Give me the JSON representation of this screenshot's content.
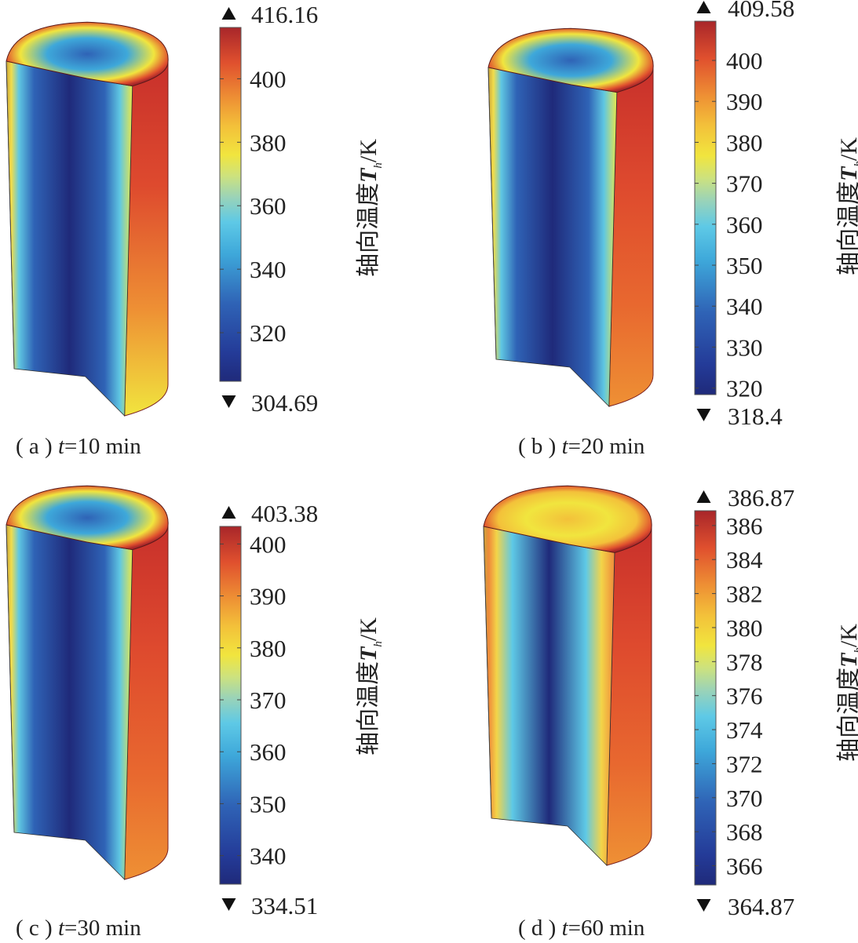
{
  "panels": [
    {
      "caption_prefix": "( a ) ",
      "caption_t": "t",
      "caption_suffix": "=10 min",
      "colorbar_label_prefix": "轴向温度",
      "colorbar_label_symbol": "T",
      "colorbar_label_sub": "h",
      "colorbar_label_unit": "/K",
      "max_label": "416.16",
      "min_label": "304.69"
    },
    {
      "caption_prefix": "( b ) ",
      "caption_t": "t",
      "caption_suffix": "=20 min",
      "colorbar_label_prefix": "轴向温度",
      "colorbar_label_symbol": "T",
      "colorbar_label_sub": "h",
      "colorbar_label_unit": "/K",
      "max_label": "409.58",
      "min_label": "318.4"
    },
    {
      "caption_prefix": "( c ) ",
      "caption_t": "t",
      "caption_suffix": "=30 min",
      "colorbar_label_prefix": "轴向温度",
      "colorbar_label_symbol": "T",
      "colorbar_label_sub": "h",
      "colorbar_label_unit": "/K",
      "max_label": "403.38",
      "min_label": "334.51"
    },
    {
      "caption_prefix": "( d ) ",
      "caption_t": "t",
      "caption_suffix": "=60 min",
      "colorbar_label_prefix": "轴向温度",
      "colorbar_label_symbol": "T",
      "colorbar_label_sub": "h",
      "colorbar_label_unit": "/K",
      "max_label": "386.87",
      "min_label": "364.87"
    }
  ],
  "chart_data": [
    {
      "type": "heatmap",
      "subplot": "(a)",
      "time_min": 10,
      "colorbar_label": "轴向温度T_h/K",
      "colormap": "rainbow (dark blue → cyan → yellow → red)",
      "range": [
        304.69,
        416.16
      ],
      "ticks": [
        320,
        340,
        360,
        380,
        400
      ],
      "max_marker": 416.16,
      "min_marker": 304.69
    },
    {
      "type": "heatmap",
      "subplot": "(b)",
      "time_min": 20,
      "colorbar_label": "轴向温度T_h/K",
      "colormap": "rainbow (dark blue → cyan → yellow → red)",
      "range": [
        318.4,
        409.58
      ],
      "ticks": [
        320,
        330,
        340,
        350,
        360,
        370,
        380,
        390,
        400
      ],
      "max_marker": 409.58,
      "min_marker": 318.4
    },
    {
      "type": "heatmap",
      "subplot": "(c)",
      "time_min": 30,
      "colorbar_label": "轴向温度T_h/K",
      "colormap": "rainbow (dark blue → cyan → yellow → red)",
      "range": [
        334.51,
        403.38
      ],
      "ticks": [
        340,
        350,
        360,
        370,
        380,
        390,
        400
      ],
      "max_marker": 403.38,
      "min_marker": 334.51
    },
    {
      "type": "heatmap",
      "subplot": "(d)",
      "time_min": 60,
      "colorbar_label": "轴向温度T_h/K",
      "colormap": "rainbow (dark blue → cyan → yellow → red)",
      "range": [
        364.87,
        386.87
      ],
      "ticks": [
        366,
        368,
        370,
        372,
        374,
        376,
        378,
        380,
        382,
        384,
        386
      ],
      "max_marker": 386.87,
      "min_marker": 364.87
    }
  ]
}
